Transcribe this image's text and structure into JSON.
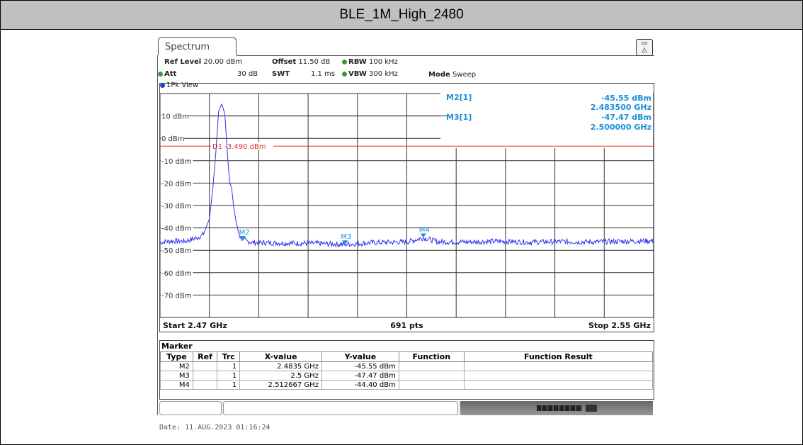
{
  "page_title": "BLE_1M_High_2480",
  "analyzer": {
    "tab_label": "Spectrum",
    "ref_level_label": "Ref Level",
    "ref_level_value": "20.00 dBm",
    "offset_label": "Offset",
    "offset_value": "11.50 dB",
    "rbw_label": "RBW",
    "rbw_value": "100 kHz",
    "att_label": "Att",
    "att_value": "30 dB",
    "swt_label": "SWT",
    "swt_value": "1.1 ms",
    "vbw_label": "VBW",
    "vbw_value": "300 kHz",
    "mode_label": "Mode",
    "mode_value": "Sweep",
    "trace_label": "1Pk View"
  },
  "readout": {
    "m2_label": "M2[1]",
    "m2_level": "-45.55 dBm",
    "m2_freq": "2.483500 GHz",
    "m3_label": "M3[1]",
    "m3_level": "-47.47 dBm",
    "m3_freq": "2.500000 GHz"
  },
  "chart_data": {
    "type": "line",
    "x_start_ghz": 2.47,
    "x_stop_ghz": 2.55,
    "ylim": [
      -80,
      20
    ],
    "y_tick_labels": [
      "10 dBm",
      "0 dBm",
      "-10 dBm",
      "-20 dBm",
      "-30 dBm",
      "-40 dBm",
      "-50 dBm",
      "-60 dBm",
      "-70 dBm"
    ],
    "y_tick_values": [
      10,
      0,
      -10,
      -20,
      -30,
      -40,
      -50,
      -60,
      -70
    ],
    "grid": true,
    "display_line": {
      "label": "D1 -3.490 dBm",
      "value": -3.49,
      "color": "#e03030"
    },
    "trace_color": "#3333ee",
    "marker_color": "#1a8fd8",
    "trace_points": [
      [
        2.47,
        -46.5
      ],
      [
        2.472,
        -45.8
      ],
      [
        2.474,
        -46.0
      ],
      [
        2.476,
        -44.5
      ],
      [
        2.477,
        -43.0
      ],
      [
        2.478,
        -36.0
      ],
      [
        2.4785,
        -24.0
      ],
      [
        2.479,
        -8.0
      ],
      [
        2.4795,
        12.0
      ],
      [
        2.48,
        15.5
      ],
      [
        2.4805,
        11.0
      ],
      [
        2.481,
        -10.0
      ],
      [
        2.4813,
        -20.0
      ],
      [
        2.4816,
        -22.0
      ],
      [
        2.482,
        -32.0
      ],
      [
        2.4825,
        -40.0
      ],
      [
        2.483,
        -44.0
      ],
      [
        2.4835,
        -45.5
      ],
      [
        2.485,
        -46.5
      ],
      [
        2.49,
        -46.8
      ],
      [
        2.495,
        -46.9
      ],
      [
        2.5,
        -47.4
      ],
      [
        2.505,
        -46.5
      ],
      [
        2.51,
        -46.3
      ],
      [
        2.5127,
        -44.4
      ],
      [
        2.515,
        -46.2
      ],
      [
        2.52,
        -46.3
      ],
      [
        2.525,
        -46.0
      ],
      [
        2.53,
        -46.4
      ],
      [
        2.535,
        -46.1
      ],
      [
        2.54,
        -46.3
      ],
      [
        2.545,
        -46.0
      ],
      [
        2.55,
        -45.8
      ]
    ],
    "markers": [
      {
        "label": "M2",
        "x": 2.4835,
        "y": -45.55
      },
      {
        "label": "M3",
        "x": 2.5,
        "y": -47.47
      },
      {
        "label": "M4",
        "x": 2.512667,
        "y": -44.4
      }
    ],
    "start_label": "Start 2.47 GHz",
    "points_label": "691 pts",
    "stop_label": "Stop 2.55 GHz"
  },
  "marker_table": {
    "title": "Marker",
    "headers": [
      "Type",
      "Ref",
      "Trc",
      "X-value",
      "Y-value",
      "Function",
      "Function Result"
    ],
    "rows": [
      [
        "M2",
        "",
        "1",
        "2.4835 GHz",
        "-45.55 dBm",
        "",
        ""
      ],
      [
        "M3",
        "",
        "1",
        "2.5 GHz",
        "-47.47 dBm",
        "",
        ""
      ],
      [
        "M4",
        "",
        "1",
        "2.512667 GHz",
        "-44.40 dBm",
        "",
        ""
      ]
    ]
  },
  "footer": {
    "date": "Date: 11.AUG.2023  01:16:24"
  }
}
